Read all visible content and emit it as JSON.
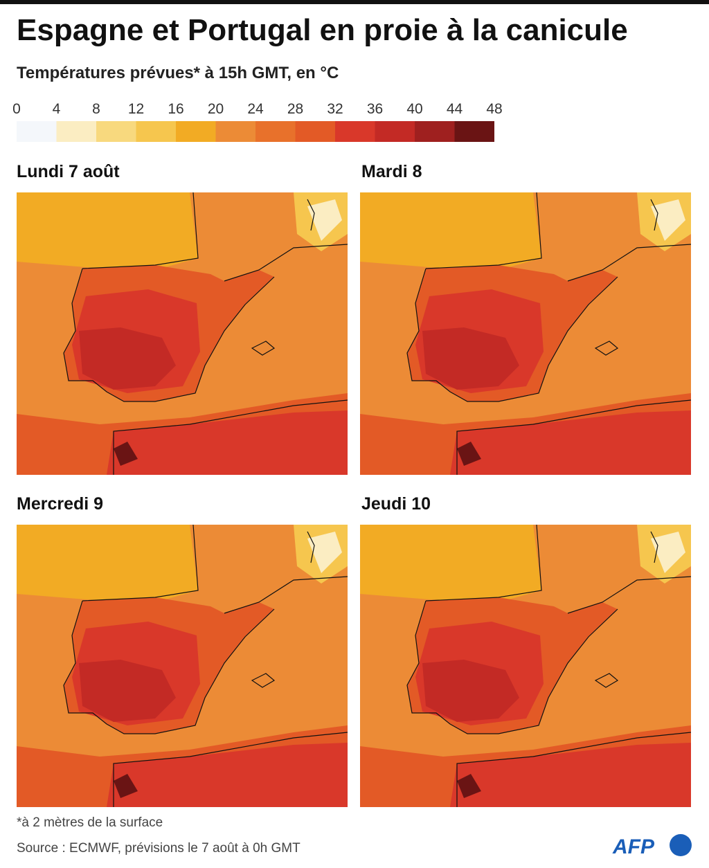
{
  "header": {
    "title": "Espagne et Portugal en proie à la canicule",
    "subtitle": "Températures prévues* à 15h GMT, en °C"
  },
  "legend": {
    "ticks": [
      0,
      4,
      8,
      12,
      16,
      20,
      24,
      28,
      32,
      36,
      40,
      44,
      48
    ],
    "colors": [
      "#f4f7fb",
      "#fbedc2",
      "#f8d97e",
      "#f6c64e",
      "#f2ab24",
      "#ec8b36",
      "#e8712b",
      "#e35a26",
      "#d9382a",
      "#c32a25",
      "#9f201f",
      "#6a1414"
    ]
  },
  "panels": [
    {
      "label": "Lundi 7 août"
    },
    {
      "label": "Mardi 8"
    },
    {
      "label": "Mercredi 9"
    },
    {
      "label": "Jeudi 10"
    }
  ],
  "footer": {
    "note": "*à 2 mètres de la surface",
    "source": "Source : ECMWF, prévisions le 7 août à 0h GMT",
    "logo": "AFP"
  }
}
